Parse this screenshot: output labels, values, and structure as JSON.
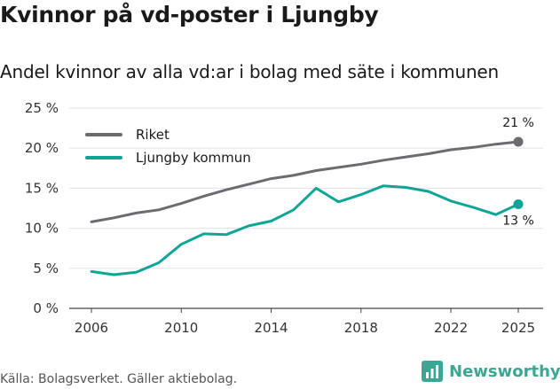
{
  "title": "Kvinnor på vd-poster i Ljungby",
  "subtitle": "Andel kvinnor av alla vd:ar i bolag med säte i kommunen",
  "source": "Källa: Bolagsverket. Gäller aktiebolag.",
  "brand": {
    "name": "Newsworthy",
    "icon": "newsworthy-logo-icon",
    "color": "#3aa693"
  },
  "chart_data": {
    "type": "line",
    "title": "Kvinnor på vd-poster i Ljungby",
    "subtitle": "Andel kvinnor av alla vd:ar i bolag med säte i kommunen",
    "xlabel": "",
    "ylabel": "",
    "xlim": [
      2006,
      2025
    ],
    "ylim": [
      0,
      25
    ],
    "grid": true,
    "legend_position": "top-left",
    "x_ticks": [
      2006,
      2010,
      2014,
      2018,
      2022,
      2025
    ],
    "x_tick_labels": [
      "2006",
      "2010",
      "2014",
      "2018",
      "2022",
      "2025"
    ],
    "y_ticks": [
      0,
      5,
      10,
      15,
      20,
      25
    ],
    "y_tick_labels": [
      "0 %",
      "5 %",
      "10 %",
      "15 %",
      "20 %",
      "25 %"
    ],
    "x": [
      2006,
      2007,
      2008,
      2009,
      2010,
      2011,
      2012,
      2013,
      2014,
      2015,
      2016,
      2017,
      2018,
      2019,
      2020,
      2021,
      2022,
      2023,
      2024,
      2025
    ],
    "series": [
      {
        "name": "Riket",
        "color": "#6b6b70",
        "values": [
          10.8,
          11.3,
          11.9,
          12.3,
          13.1,
          14.0,
          14.8,
          15.5,
          16.2,
          16.6,
          17.2,
          17.6,
          18.0,
          18.5,
          18.9,
          19.3,
          19.8,
          20.1,
          20.5,
          20.8
        ],
        "end_label": "21 %"
      },
      {
        "name": "Ljungby kommun",
        "color": "#0fa596",
        "values": [
          4.6,
          4.2,
          4.5,
          5.7,
          8.0,
          9.3,
          9.2,
          10.3,
          10.9,
          12.3,
          15.0,
          13.3,
          14.2,
          15.3,
          15.1,
          14.6,
          13.4,
          12.6,
          11.7,
          13.0
        ],
        "end_label": "13 %"
      }
    ]
  }
}
